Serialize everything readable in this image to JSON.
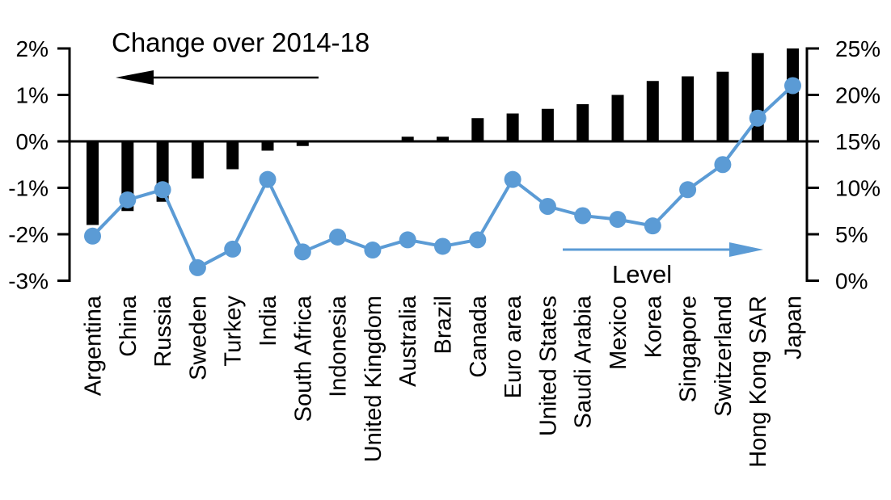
{
  "chart_data": {
    "type": "combo-bar-line",
    "title": "Change over 2014-18 (bars, left axis) and Level (line, right axis)",
    "categories": [
      "Argentina",
      "China",
      "Russia",
      "Sweden",
      "Turkey",
      "India",
      "South Africa",
      "Indonesia",
      "United Kingdom",
      "Australia",
      "Brazil",
      "Canada",
      "Euro area",
      "United States",
      "Saudi Arabia",
      "Mexico",
      "Korea",
      "Singapore",
      "Switzerland",
      "Hong Kong SAR",
      "Japan"
    ],
    "series": [
      {
        "name": "Change over 2014-18",
        "type": "bar",
        "axis": "left",
        "unit": "%",
        "color": "#000000",
        "values": [
          -1.8,
          -1.5,
          -1.3,
          -0.8,
          -0.6,
          -0.2,
          -0.1,
          0.0,
          0.0,
          0.1,
          0.1,
          0.5,
          0.6,
          0.7,
          0.8,
          1.0,
          1.3,
          1.4,
          1.5,
          1.9,
          2.0
        ]
      },
      {
        "name": "Level",
        "type": "line",
        "axis": "right",
        "unit": "%",
        "color": "#5B9BD5",
        "values": [
          4.8,
          8.7,
          9.8,
          1.4,
          3.4,
          10.9,
          3.1,
          4.7,
          3.3,
          4.4,
          3.7,
          4.4,
          10.9,
          8.0,
          7.0,
          6.6,
          5.9,
          9.8,
          12.5,
          17.5,
          21.0
        ]
      }
    ],
    "left_axis": {
      "min": -3,
      "max": 2,
      "tick_values": [
        2,
        1,
        0,
        -1,
        -2,
        -3
      ],
      "tick_labels": [
        "2%",
        "1%",
        "0%",
        "-1%",
        "-2%",
        "-3%"
      ]
    },
    "right_axis": {
      "min": 0,
      "max": 25,
      "tick_values": [
        25,
        20,
        15,
        10,
        5,
        0
      ],
      "tick_labels": [
        "25%",
        "20%",
        "15%",
        "10%",
        "5%",
        "0%"
      ]
    },
    "annotations": [
      {
        "text": "Change over 2014-18",
        "arrow_direction": "left",
        "color": "#000000"
      },
      {
        "text": "Level",
        "arrow_direction": "right",
        "color": "#5B9BD5"
      }
    ],
    "grid": false,
    "legend_position": "in-plot arrows",
    "background": "#FFFFFF"
  }
}
